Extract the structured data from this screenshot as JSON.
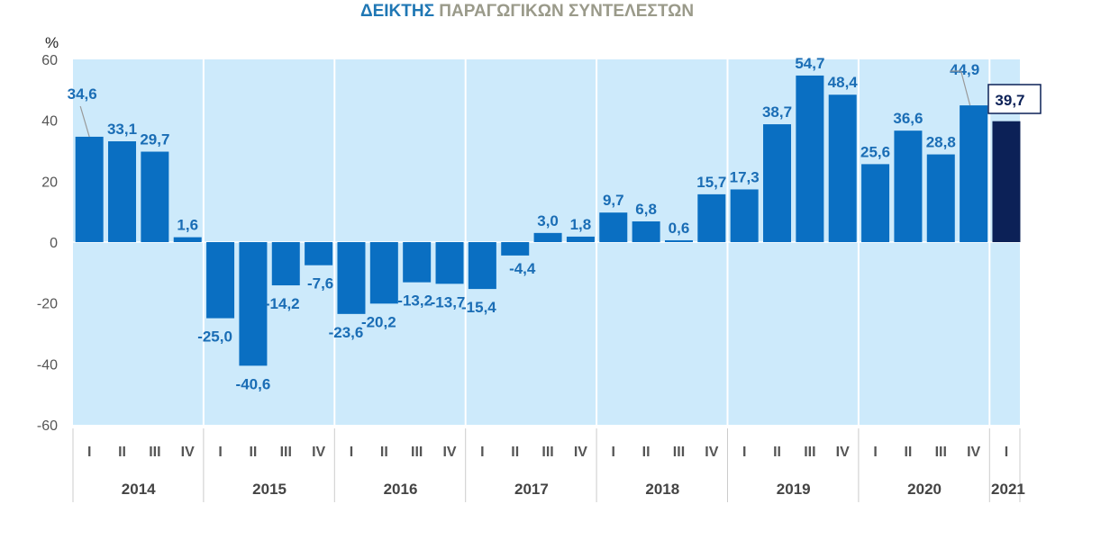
{
  "chart_data": {
    "type": "bar",
    "title_part1": "ΔΕΙΚΤΗΣ",
    "title_part2": "ΠΑΡΑΓΩΓΙΚΩΝ ΣΥΝΤΕΛΕΣΤΩΝ",
    "ylabel": "%",
    "ylim": [
      -60,
      60
    ],
    "yticks": [
      "60",
      "40",
      "20",
      "0",
      "-20",
      "-40",
      "-60"
    ],
    "ytick_values": [
      60,
      40,
      20,
      0,
      -20,
      -40,
      -60
    ],
    "categories": [
      "I",
      "II",
      "III",
      "IV",
      "I",
      "II",
      "III",
      "IV",
      "I",
      "II",
      "III",
      "IV",
      "I",
      "II",
      "III",
      "IV",
      "I",
      "II",
      "III",
      "IV",
      "I",
      "II",
      "III",
      "IV",
      "I",
      "II",
      "III",
      "IV",
      "I"
    ],
    "years": [
      "2014",
      "2015",
      "2016",
      "2017",
      "2018",
      "2019",
      "2020",
      "2021"
    ],
    "values": [
      34.6,
      33.1,
      29.7,
      1.6,
      -25.0,
      -40.6,
      -14.2,
      -7.6,
      -23.6,
      -20.2,
      -13.2,
      -13.7,
      -15.4,
      -4.4,
      3.0,
      1.8,
      9.7,
      6.8,
      0.6,
      15.7,
      17.3,
      38.7,
      54.7,
      48.4,
      25.6,
      36.6,
      28.8,
      44.9,
      39.7
    ],
    "value_labels": [
      "34,6",
      "33,1",
      "29,7",
      "1,6",
      "-25,0",
      "-40,6",
      "-14,2",
      "-7,6",
      "-23,6",
      "-20,2",
      "-13,2",
      "-13,7",
      "-15,4",
      "-4,4",
      "3,0",
      "1,8",
      "9,7",
      "6,8",
      "0,6",
      "15,7",
      "17,3",
      "38,7",
      "54,7",
      "48,4",
      "25,6",
      "36,6",
      "28,8",
      "44,9",
      "39,7"
    ],
    "grid": false,
    "colors": {
      "bar": "#0a6fc2",
      "highlight_bar": "#0c2157",
      "background": "#cdeafb",
      "data_label": "#1a6db5",
      "title_blue": "#1f77b4",
      "title_grey": "#9a9a8a"
    }
  }
}
